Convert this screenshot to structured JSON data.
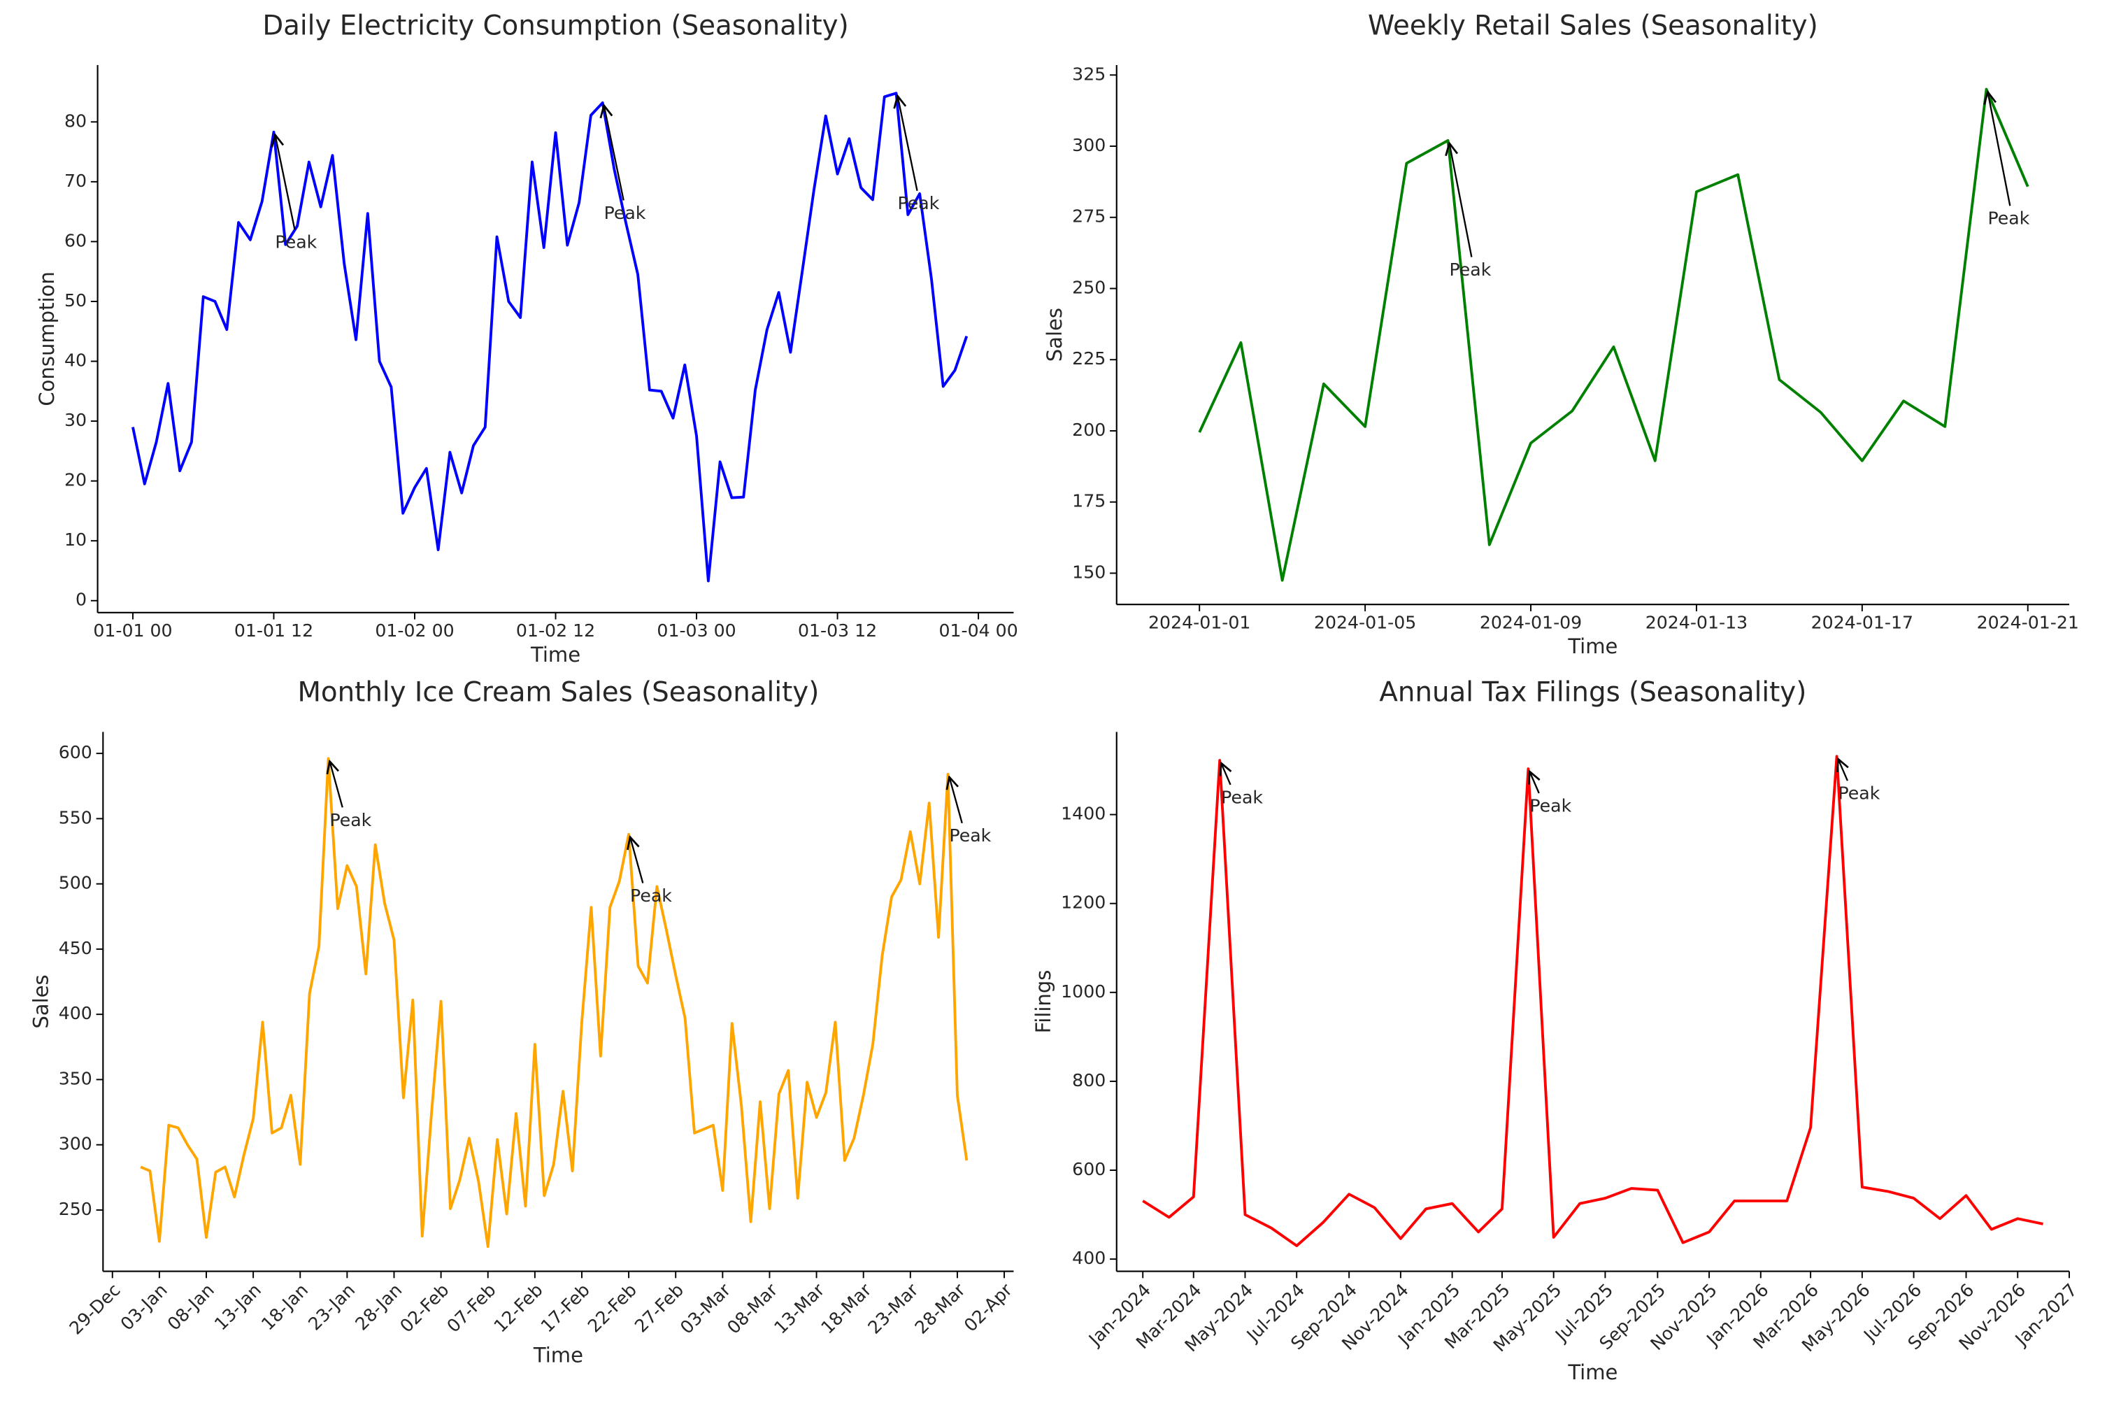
{
  "chart_data": [
    {
      "type": "line",
      "title": "Daily Electricity Consumption (Seasonality)",
      "xlabel": "Time",
      "ylabel": "Consumption",
      "color": "#0000ff",
      "x": [
        "01-01 00",
        "01-01 01",
        "01-01 02",
        "01-01 03",
        "01-01 04",
        "01-01 05",
        "01-01 06",
        "01-01 07",
        "01-01 08",
        "01-01 09",
        "01-01 10",
        "01-01 11",
        "01-01 12",
        "01-01 13",
        "01-01 14",
        "01-01 15",
        "01-01 16",
        "01-01 17",
        "01-01 18",
        "01-01 19",
        "01-01 20",
        "01-01 21",
        "01-01 22",
        "01-01 23",
        "01-02 00",
        "01-02 01",
        "01-02 02",
        "01-02 03",
        "01-02 04",
        "01-02 05",
        "01-02 06",
        "01-02 07",
        "01-02 08",
        "01-02 09",
        "01-02 10",
        "01-02 11",
        "01-02 12",
        "01-02 13",
        "01-02 14",
        "01-02 15",
        "01-02 16",
        "01-02 17",
        "01-02 18",
        "01-02 19",
        "01-02 20",
        "01-02 21",
        "01-02 22",
        "01-02 23",
        "01-03 00",
        "01-03 01",
        "01-03 02",
        "01-03 03",
        "01-03 04",
        "01-03 05",
        "01-03 06",
        "01-03 07",
        "01-03 08",
        "01-03 09",
        "01-03 10",
        "01-03 11",
        "01-03 12",
        "01-03 13",
        "01-03 14",
        "01-03 15",
        "01-03 16",
        "01-03 17",
        "01-03 18",
        "01-03 19",
        "01-03 20",
        "01-03 21",
        "01-03 22",
        "01-03 23"
      ],
      "values": [
        29,
        19.5,
        26.5,
        36.3,
        21.7,
        26.5,
        50.8,
        50,
        45.3,
        63.2,
        60.3,
        66.7,
        78.3,
        59.5,
        62.6,
        73.3,
        65.8,
        74.4,
        56.3,
        43.6,
        64.7,
        40,
        35.7,
        14.6,
        18.9,
        22.1,
        8.5,
        24.8,
        18,
        25.9,
        29,
        60.8,
        50,
        47.3,
        73.3,
        59,
        78.2,
        59.4,
        66.5,
        81.1,
        83.2,
        72,
        63,
        54.5,
        35.2,
        35,
        30.5,
        39.4,
        27.5,
        3.3,
        23.2,
        17.2,
        17.3,
        35.2,
        45.3,
        51.5,
        41.5,
        55,
        68.7,
        81,
        71.3,
        77.2,
        69,
        67,
        84.2,
        84.8,
        64.5,
        68,
        53.8,
        35.8,
        38.5,
        44.2
      ],
      "xlim": [
        "12-31 21",
        "01-04 03"
      ],
      "xticks": [
        "01-01 00",
        "01-01 12",
        "01-02 00",
        "01-02 12",
        "01-03 00",
        "01-03 12",
        "01-04 00"
      ],
      "ylim": [
        -2,
        89.5
      ],
      "yticks": [
        0,
        10,
        20,
        30,
        40,
        50,
        60,
        70,
        80
      ],
      "annotations": [
        {
          "text": "Peak",
          "x": "01-01 12",
          "y": 78.3
        },
        {
          "text": "Peak",
          "x": "01-02 16",
          "y": 83.2
        },
        {
          "text": "Peak",
          "x": "01-03 17",
          "y": 84.8
        }
      ]
    },
    {
      "type": "line",
      "title": "Weekly Retail Sales (Seasonality)",
      "xlabel": "Time",
      "ylabel": "Sales",
      "color": "#008000",
      "x": [
        "2024-01-01",
        "2024-01-02",
        "2024-01-03",
        "2024-01-04",
        "2024-01-05",
        "2024-01-06",
        "2024-01-07",
        "2024-01-08",
        "2024-01-09",
        "2024-01-10",
        "2024-01-11",
        "2024-01-12",
        "2024-01-13",
        "2024-01-14",
        "2024-01-15",
        "2024-01-16",
        "2024-01-17",
        "2024-01-18",
        "2024-01-19",
        "2024-01-20",
        "2024-01-21"
      ],
      "values": [
        199.5,
        231,
        147.5,
        216.5,
        201.5,
        294,
        302,
        160,
        195.7,
        207,
        229.5,
        189.5,
        284,
        290,
        218,
        206.5,
        189.5,
        210.5,
        201.5,
        320,
        285.8
      ],
      "xlim": [
        "2023-12-30",
        "2024-01-22"
      ],
      "xticks": [
        "2024-01-01",
        "2024-01-05",
        "2024-01-09",
        "2024-01-13",
        "2024-01-17",
        "2024-01-21"
      ],
      "ylim": [
        139,
        328.5
      ],
      "yticks": [
        150,
        175,
        200,
        225,
        250,
        275,
        300,
        325
      ],
      "annotations": [
        {
          "text": "Peak",
          "x": "2024-01-07",
          "y": 302
        },
        {
          "text": "Peak",
          "x": "2024-01-20",
          "y": 320
        }
      ]
    },
    {
      "type": "line",
      "title": "Monthly Ice Cream Sales (Seasonality)",
      "xlabel": "Time",
      "ylabel": "Sales",
      "color": "#ffa500",
      "x": [
        "01-Jan",
        "02-Jan",
        "03-Jan",
        "04-Jan",
        "05-Jan",
        "06-Jan",
        "07-Jan",
        "08-Jan",
        "09-Jan",
        "10-Jan",
        "11-Jan",
        "12-Jan",
        "13-Jan",
        "14-Jan",
        "15-Jan",
        "16-Jan",
        "17-Jan",
        "18-Jan",
        "19-Jan",
        "20-Jan",
        "21-Jan",
        "22-Jan",
        "23-Jan",
        "24-Jan",
        "25-Jan",
        "26-Jan",
        "27-Jan",
        "28-Jan",
        "29-Jan",
        "30-Jan",
        "31-Jan",
        "01-Feb",
        "02-Feb",
        "03-Feb",
        "04-Feb",
        "05-Feb",
        "06-Feb",
        "07-Feb",
        "08-Feb",
        "09-Feb",
        "10-Feb",
        "11-Feb",
        "12-Feb",
        "13-Feb",
        "14-Feb",
        "15-Feb",
        "16-Feb",
        "17-Feb",
        "18-Feb",
        "19-Feb",
        "20-Feb",
        "21-Feb",
        "22-Feb",
        "23-Feb",
        "24-Feb",
        "25-Feb",
        "26-Feb",
        "27-Feb",
        "28-Feb",
        "29-Feb",
        "01-Mar",
        "02-Mar",
        "03-Mar",
        "04-Mar",
        "05-Mar",
        "06-Mar",
        "07-Mar",
        "08-Mar",
        "09-Mar",
        "10-Mar",
        "11-Mar",
        "12-Mar",
        "13-Mar",
        "14-Mar",
        "15-Mar",
        "16-Mar",
        "17-Mar",
        "18-Mar",
        "19-Mar",
        "20-Mar",
        "21-Mar",
        "22-Mar",
        "23-Mar",
        "24-Mar",
        "25-Mar",
        "26-Mar",
        "27-Mar",
        "28-Mar",
        "29-Mar"
      ],
      "values": [
        283,
        280,
        226,
        315,
        313,
        300,
        289,
        229,
        279,
        283,
        260,
        292,
        320,
        394,
        309,
        313,
        338,
        285,
        416,
        452,
        596,
        481,
        514,
        498,
        431,
        530,
        485,
        457,
        336,
        411,
        230,
        325,
        410,
        251,
        273,
        305,
        272,
        222,
        304,
        247,
        324,
        253,
        377,
        261,
        285,
        341,
        280,
        394,
        482,
        368,
        482,
        502,
        538,
        437,
        424,
        498,
        465,
        430,
        397,
        309,
        312,
        315,
        265,
        393,
        330,
        241,
        333,
        251,
        339,
        357,
        259,
        348,
        321,
        340,
        394,
        288,
        305,
        338,
        377,
        445,
        490,
        503,
        540,
        500,
        562,
        459,
        584,
        338,
        288
      ],
      "xlim": [
        "28-Dec",
        "03-Apr"
      ],
      "xticks": [
        "29-Dec",
        "03-Jan",
        "08-Jan",
        "13-Jan",
        "18-Jan",
        "23-Jan",
        "28-Jan",
        "02-Feb",
        "07-Feb",
        "12-Feb",
        "17-Feb",
        "22-Feb",
        "27-Feb",
        "03-Mar",
        "08-Mar",
        "13-Mar",
        "18-Mar",
        "23-Mar",
        "28-Mar",
        "02-Apr"
      ],
      "ylim": [
        203,
        616.5
      ],
      "yticks": [
        250,
        300,
        350,
        400,
        450,
        500,
        550,
        600
      ],
      "annotations": [
        {
          "text": "Peak",
          "x": "21-Jan",
          "y": 596
        },
        {
          "text": "Peak",
          "x": "22-Feb",
          "y": 538
        },
        {
          "text": "Peak",
          "x": "27-Mar",
          "y": 584
        }
      ]
    },
    {
      "type": "line",
      "title": "Annual Tax Filings (Seasonality)",
      "xlabel": "Time",
      "ylabel": "Filings",
      "color": "#ff0000",
      "x": [
        "Jan-2024",
        "Feb-2024",
        "Mar-2024",
        "Apr-2024",
        "May-2024",
        "Jun-2024",
        "Jul-2024",
        "Aug-2024",
        "Sep-2024",
        "Oct-2024",
        "Nov-2024",
        "Dec-2024",
        "Jan-2025",
        "Feb-2025",
        "Mar-2025",
        "Apr-2025",
        "May-2025",
        "Jun-2025",
        "Jul-2025",
        "Aug-2025",
        "Sep-2025",
        "Oct-2025",
        "Nov-2025",
        "Dec-2025",
        "Jan-2026",
        "Feb-2026",
        "Mar-2026",
        "Apr-2026",
        "May-2026",
        "Jun-2026",
        "Jul-2026",
        "Aug-2026",
        "Sep-2026",
        "Oct-2026",
        "Nov-2026",
        "Dec-2026"
      ],
      "values": [
        531,
        494,
        540,
        1522,
        500,
        470,
        430,
        482,
        546,
        516,
        446,
        513,
        525,
        461,
        513,
        1503,
        449,
        525,
        537,
        559,
        555,
        437,
        461,
        531,
        531,
        531,
        696,
        1531,
        562,
        552,
        537,
        491,
        543,
        467,
        491,
        479
      ],
      "xlim": [
        "Dec-2023",
        "Jan-2027"
      ],
      "xticks": [
        "Jan-2024",
        "Mar-2024",
        "May-2024",
        "Jul-2024",
        "Sep-2024",
        "Nov-2024",
        "Jan-2025",
        "Mar-2025",
        "May-2025",
        "Jul-2025",
        "Sep-2025",
        "Nov-2025",
        "Jan-2026",
        "Mar-2026",
        "May-2026",
        "Jul-2026",
        "Sep-2026",
        "Nov-2026",
        "Jan-2027"
      ],
      "ylim": [
        372.5,
        1586
      ],
      "yticks": [
        400,
        600,
        800,
        1000,
        1200,
        1400
      ],
      "annotations": [
        {
          "text": "Peak",
          "x": "Apr-2024",
          "y": 1522
        },
        {
          "text": "Peak",
          "x": "Apr-2025",
          "y": 1503
        },
        {
          "text": "Peak",
          "x": "Apr-2026",
          "y": 1531
        }
      ]
    }
  ]
}
